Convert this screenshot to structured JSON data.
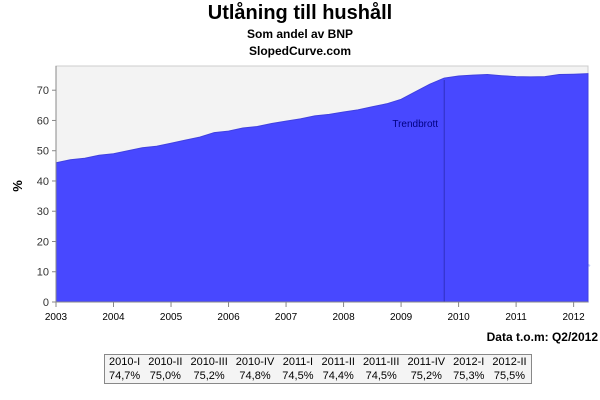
{
  "chart_data": {
    "type": "area",
    "title": "Utlåning till hushåll",
    "subtitle": "Som andel av BNP",
    "source": "SlopedCurve.com",
    "ylabel": "%",
    "ylim": [
      0,
      78
    ],
    "yticks": [
      0,
      10,
      20,
      30,
      40,
      50,
      60,
      70
    ],
    "xlim": [
      2003.0,
      2012.25
    ],
    "xticks": [
      "2003",
      "2004",
      "2005",
      "2006",
      "2007",
      "2008",
      "2009",
      "2010",
      "2011",
      "2012"
    ],
    "series": [
      {
        "x": [
          2003.0,
          2003.25,
          2003.5,
          2003.75,
          2004.0,
          2004.25,
          2004.5,
          2004.75,
          2005.0,
          2005.25,
          2005.5,
          2005.75,
          2006.0,
          2006.25,
          2006.5,
          2006.75,
          2007.0,
          2007.25,
          2007.5,
          2007.75,
          2008.0,
          2008.25,
          2008.5,
          2008.75,
          2009.0,
          2009.25,
          2009.5,
          2009.75,
          2010.0,
          2010.25,
          2010.5,
          2010.75,
          2011.0,
          2011.25,
          2011.5,
          2011.75,
          2012.0,
          2012.25
        ],
        "values": [
          46.0,
          47.0,
          47.5,
          48.5,
          49.0,
          50.0,
          51.0,
          51.5,
          52.5,
          53.5,
          54.5,
          56.0,
          56.5,
          57.5,
          58.0,
          59.0,
          59.8,
          60.5,
          61.5,
          62.0,
          62.8,
          63.5,
          64.5,
          65.5,
          67.0,
          69.5,
          72.0,
          74.0,
          74.7,
          75.0,
          75.2,
          74.8,
          74.5,
          74.4,
          74.5,
          75.2,
          75.3,
          75.5
        ]
      }
    ],
    "annotation": {
      "label": "Trendbrott",
      "x": 2009.75
    },
    "logo_text": [
      "Sloped",
      "Curve"
    ],
    "colors": {
      "area": "#4848ff",
      "background": "#f3f3f3",
      "line": "#3a3ad0"
    }
  },
  "data_note": "Data t.o.m: Q2/2012",
  "summary_table": {
    "headers": [
      "2010-I",
      "2010-II",
      "2010-III",
      "2010-IV",
      "2011-I",
      "2011-II",
      "2011-III",
      "2011-IV",
      "2012-I",
      "2012-II"
    ],
    "values": [
      "74,7%",
      "75,0%",
      "75,2%",
      "74,8%",
      "74,5%",
      "74,4%",
      "74,5%",
      "75,2%",
      "75,3%",
      "75,5%"
    ]
  }
}
